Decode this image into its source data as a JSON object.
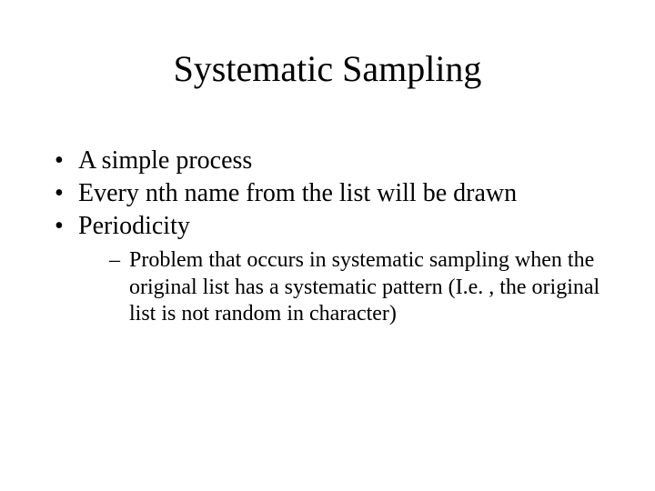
{
  "slide": {
    "title": "Systematic Sampling",
    "bullets": [
      {
        "text": "A simple process"
      },
      {
        "text": "Every  nth name from the list will be drawn"
      },
      {
        "text": "Periodicity"
      }
    ],
    "sub_bullet": "Problem that occurs in systematic sampling when the original list has a systematic pattern (I.e. , the original list is not random in character)",
    "style": {
      "background_color": "#ffffff",
      "text_color": "#000000",
      "font_family": "Times New Roman",
      "title_fontsize": 40,
      "bullet_fontsize": 28,
      "sub_bullet_fontsize": 24
    }
  }
}
